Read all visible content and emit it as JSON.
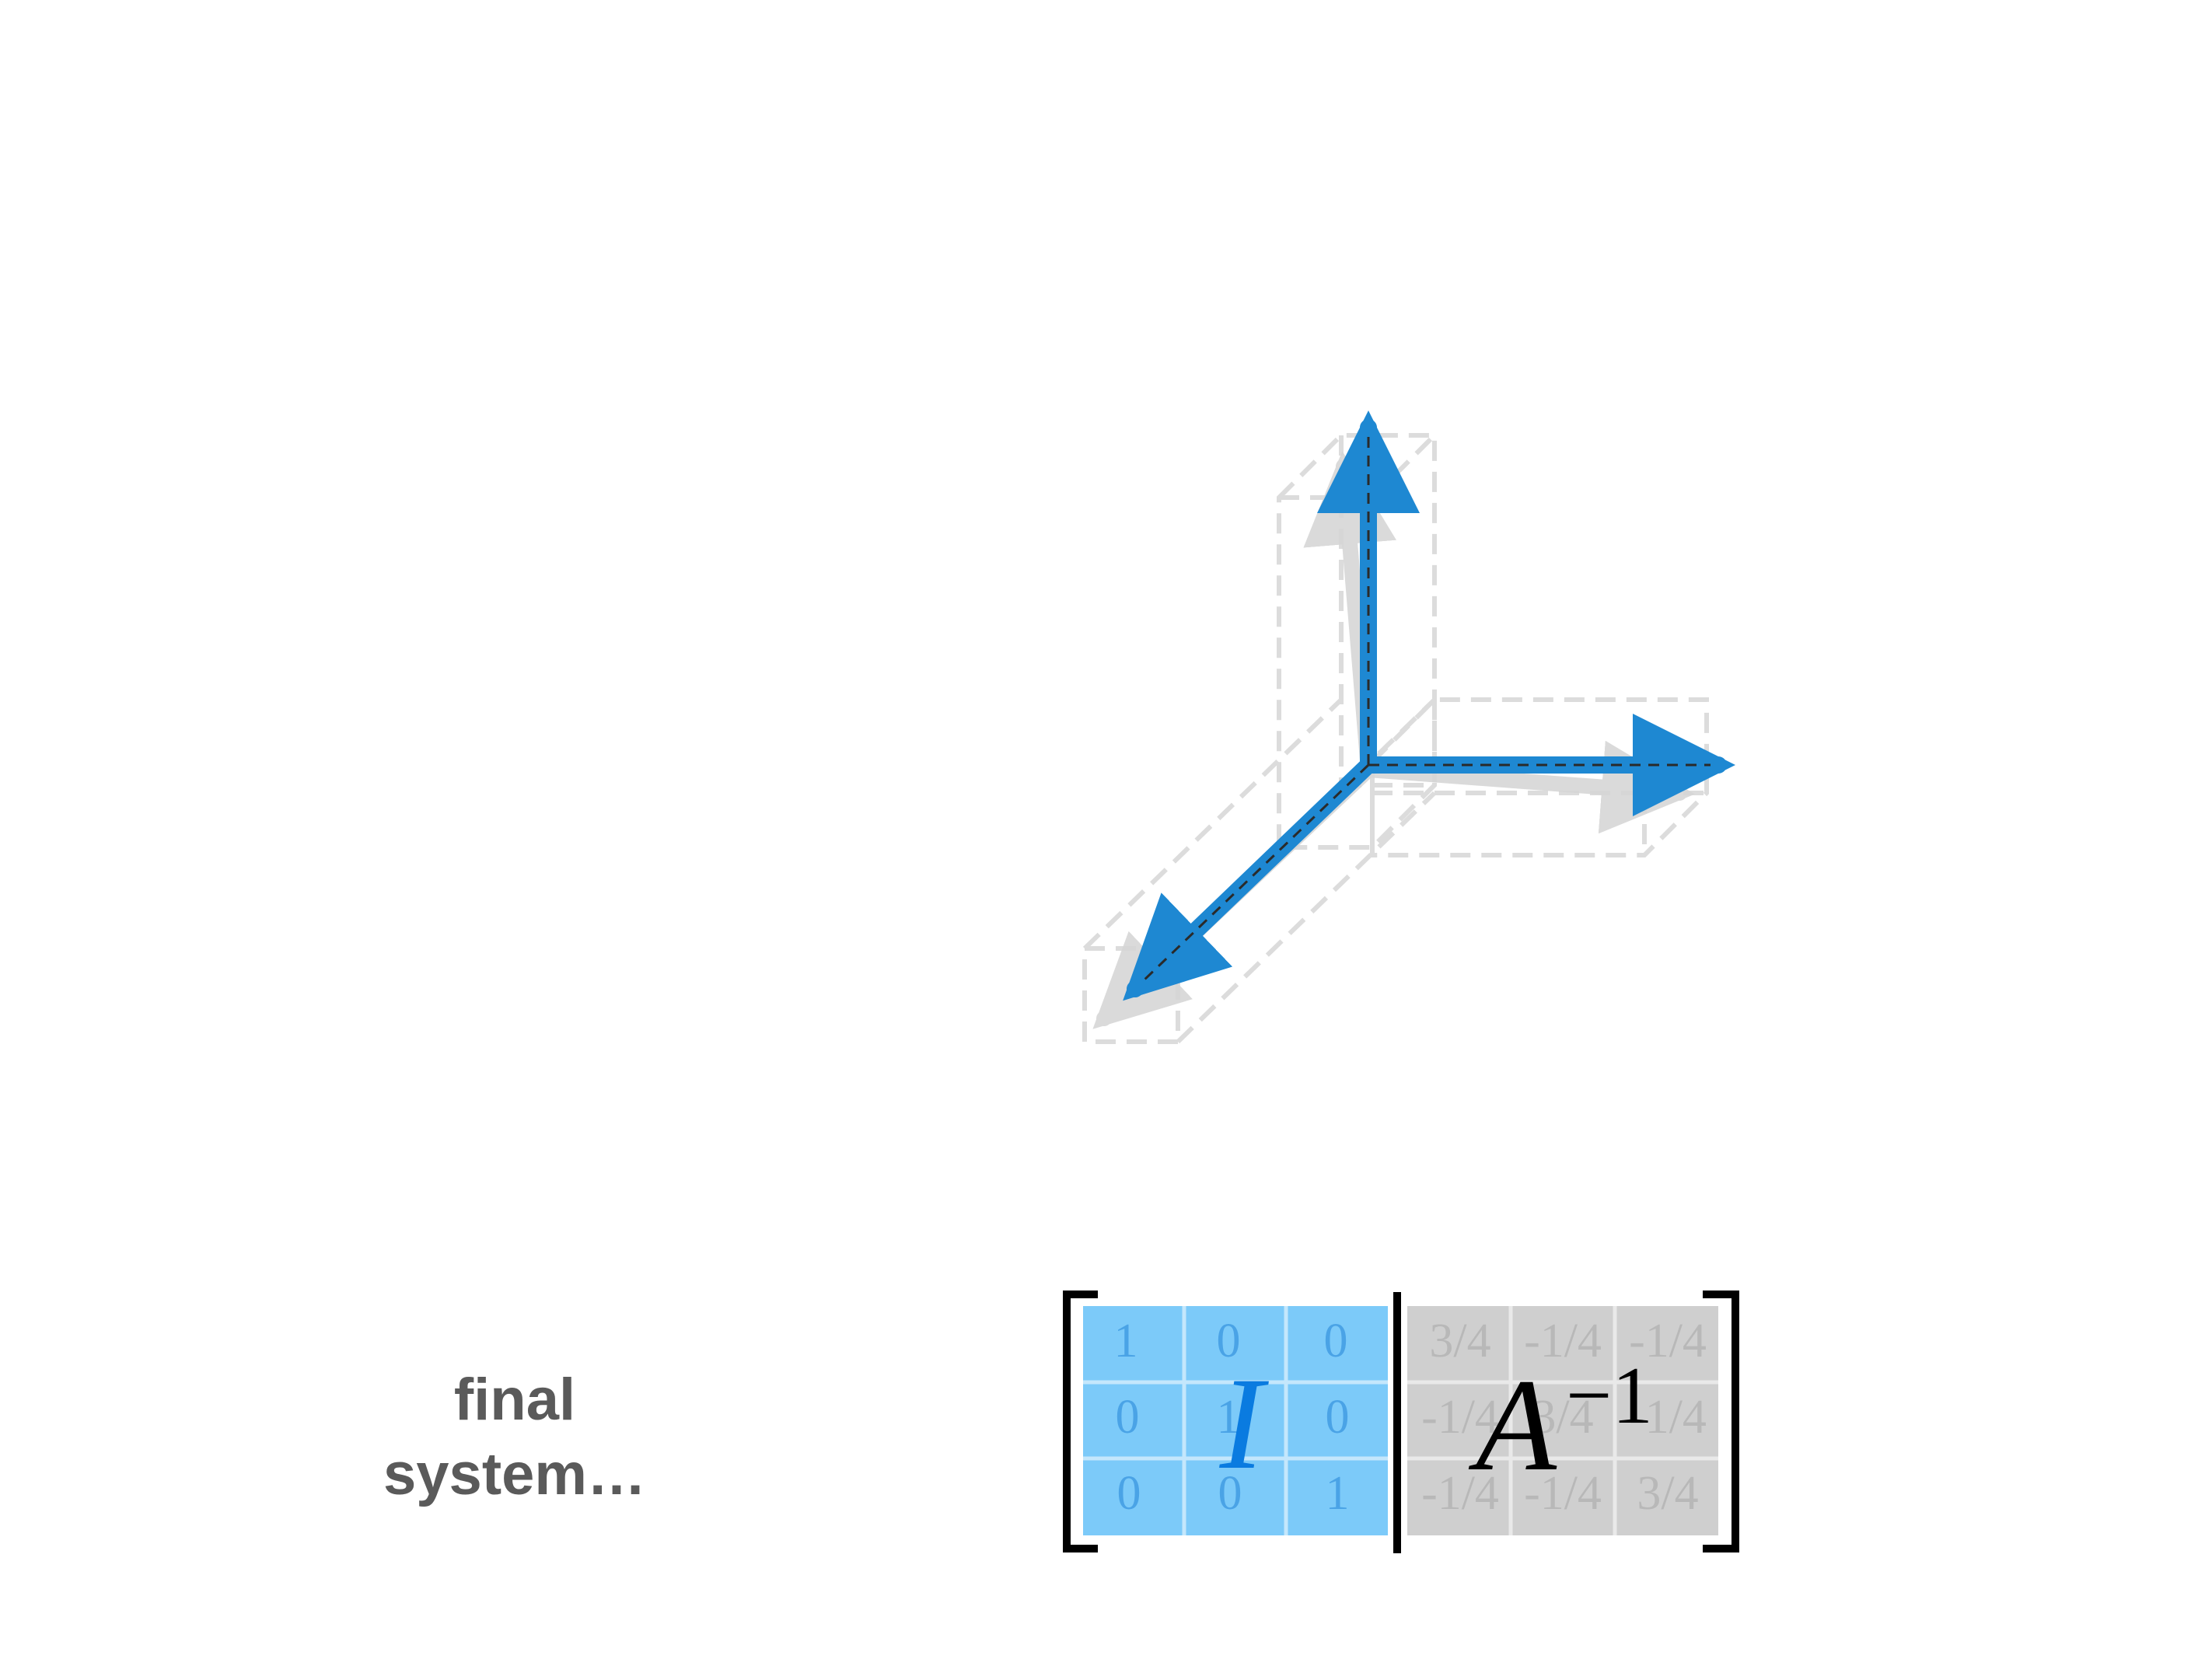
{
  "caption": {
    "lines": [
      "final",
      "system…"
    ]
  },
  "augmented_matrix": {
    "left_label": "I",
    "right_label_base": "A",
    "right_label_exponent": "−1",
    "left_cells": [
      [
        "1",
        "0",
        "0"
      ],
      [
        "0",
        "1",
        "0"
      ],
      [
        "0",
        "0",
        "1"
      ]
    ],
    "right_cells": [
      [
        "3/4",
        "-1/4",
        "-1/4"
      ],
      [
        "-1/4",
        "3/4",
        "-1/4"
      ],
      [
        "-1/4",
        "-1/4",
        "3/4"
      ]
    ]
  },
  "colors": {
    "arrow_blue": "#1e88d2",
    "left_block_fill": "#7ccaf9",
    "left_block_text": "#4aa3e6",
    "left_label": "#0a7be0",
    "right_block_fill": "#cfcfcf",
    "right_block_text": "#b8b8b8",
    "ghost_gray": "#d9d9d9",
    "caption": "#5a5a5a"
  }
}
